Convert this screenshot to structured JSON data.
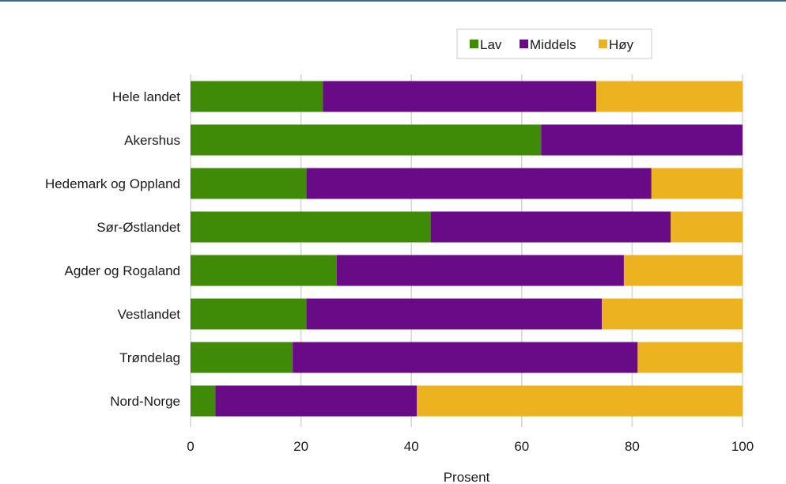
{
  "chart_data": {
    "type": "bar",
    "orientation": "horizontal",
    "stacked": true,
    "categories": [
      "Hele landet",
      "Akershus",
      "Hedemark og Oppland",
      "Sør-Østlandet",
      "Agder og Rogaland",
      "Vestlandet",
      "Trøndelag",
      "Nord-Norge"
    ],
    "series": [
      {
        "name": "Lav",
        "color": "#3f8a06",
        "values": [
          24,
          63.5,
          21,
          43.5,
          26.5,
          21,
          18.5,
          4.5
        ]
      },
      {
        "name": "Middels",
        "color": "#690a86",
        "values": [
          49.5,
          36.5,
          62.5,
          43.5,
          52,
          53.5,
          62.5,
          36.5
        ]
      },
      {
        "name": "Høy",
        "color": "#ecb220",
        "values": [
          26.5,
          0,
          16.5,
          13,
          21.5,
          25.5,
          19,
          59
        ]
      }
    ],
    "xlabel": "Prosent",
    "ylabel": "",
    "xlim": [
      0,
      100
    ],
    "xticks": [
      0,
      20,
      40,
      60,
      80,
      100
    ],
    "grid": "vertical",
    "legend_position": "top"
  }
}
